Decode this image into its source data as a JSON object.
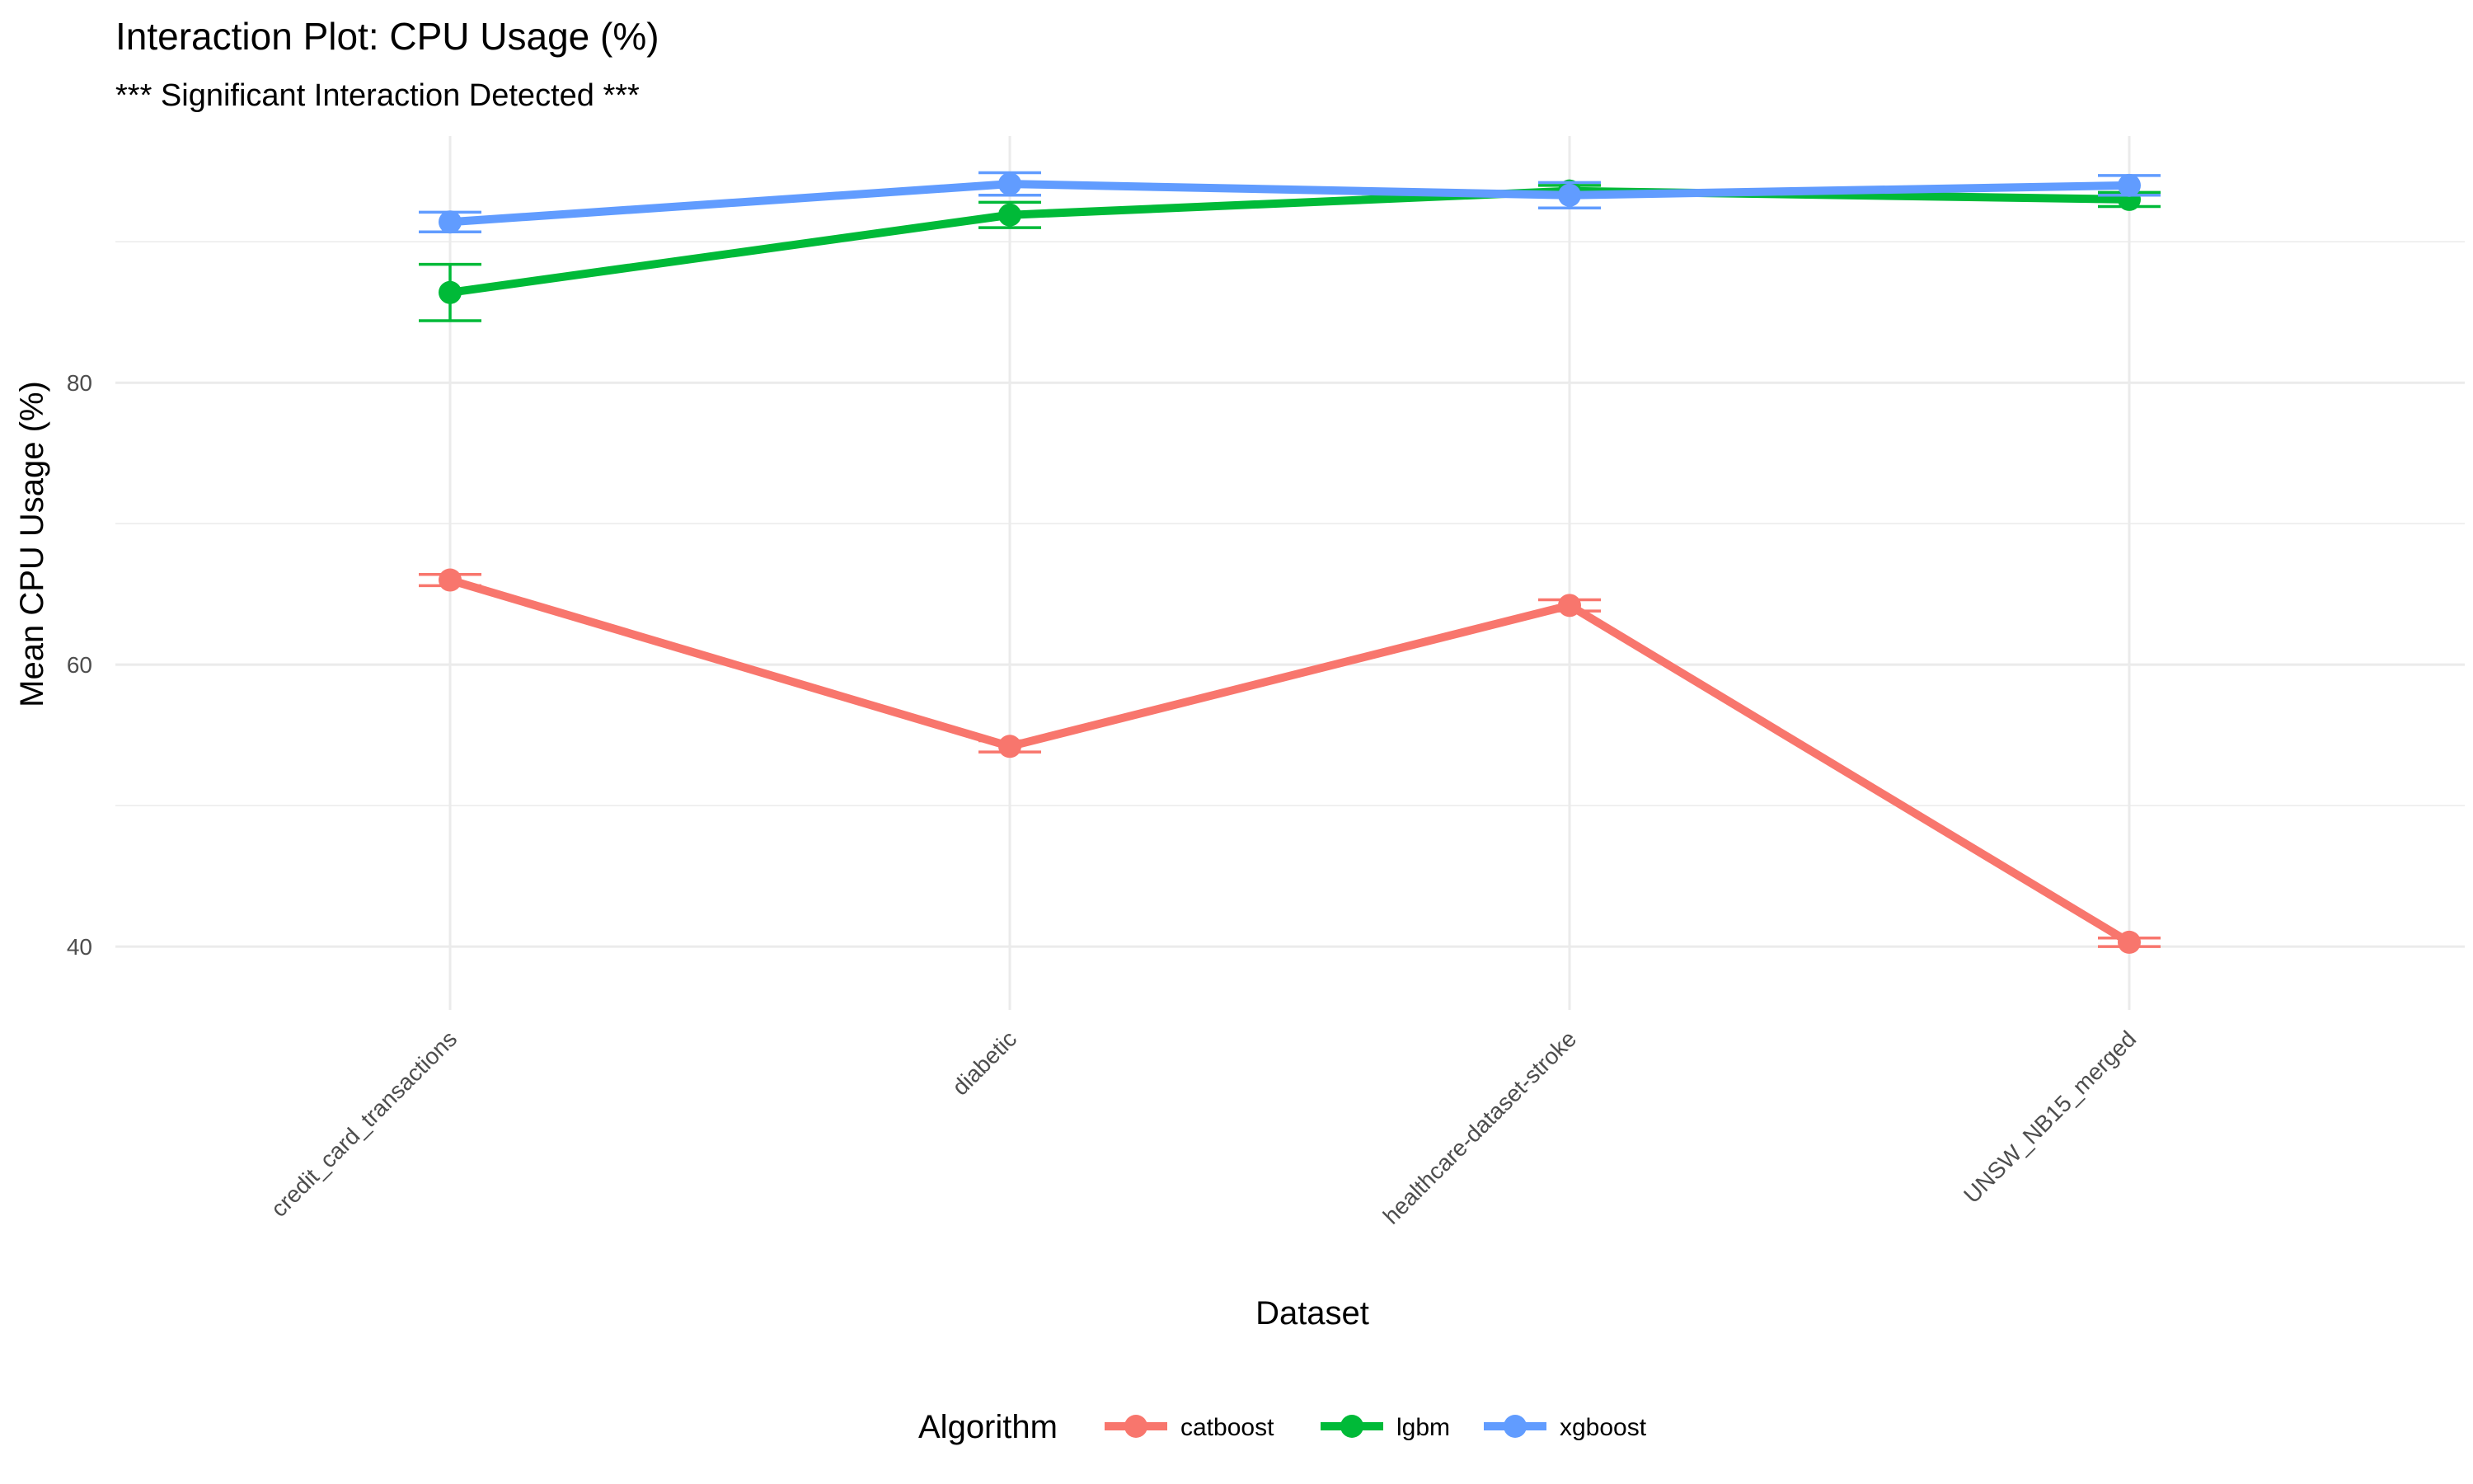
{
  "chart_data": {
    "type": "line",
    "title": "Interaction Plot: CPU Usage (%)",
    "subtitle": "*** Significant Interaction Detected ***",
    "xlabel": "Dataset",
    "ylabel": "Mean CPU Usage (%)",
    "categories": [
      "credit_card_transactions",
      "diabetic",
      "healthcare-dataset-stroke",
      "UNSW_NB15_merged"
    ],
    "ylim": [
      35.5,
      97.5
    ],
    "yticks": [
      40,
      60,
      80
    ],
    "grid": true,
    "legend": {
      "title": "Algorithm",
      "position": "bottom"
    },
    "series": [
      {
        "name": "catboost",
        "color": "#F8766D",
        "values": [
          66.0,
          54.2,
          64.2,
          40.3
        ],
        "err_low": [
          65.6,
          53.8,
          63.8,
          40.0
        ],
        "err_high": [
          66.4,
          54.6,
          64.6,
          40.6
        ]
      },
      {
        "name": "lgbm",
        "color": "#00BA38",
        "values": [
          86.4,
          91.9,
          93.6,
          93.0
        ],
        "err_low": [
          84.4,
          91.0,
          93.2,
          92.5
        ],
        "err_high": [
          88.4,
          92.8,
          94.0,
          93.5
        ]
      },
      {
        "name": "xgboost",
        "color": "#619CFF",
        "values": [
          91.4,
          94.1,
          93.3,
          94.0
        ],
        "err_low": [
          90.7,
          93.3,
          92.4,
          93.3
        ],
        "err_high": [
          92.1,
          94.9,
          94.2,
          94.7
        ]
      }
    ]
  }
}
